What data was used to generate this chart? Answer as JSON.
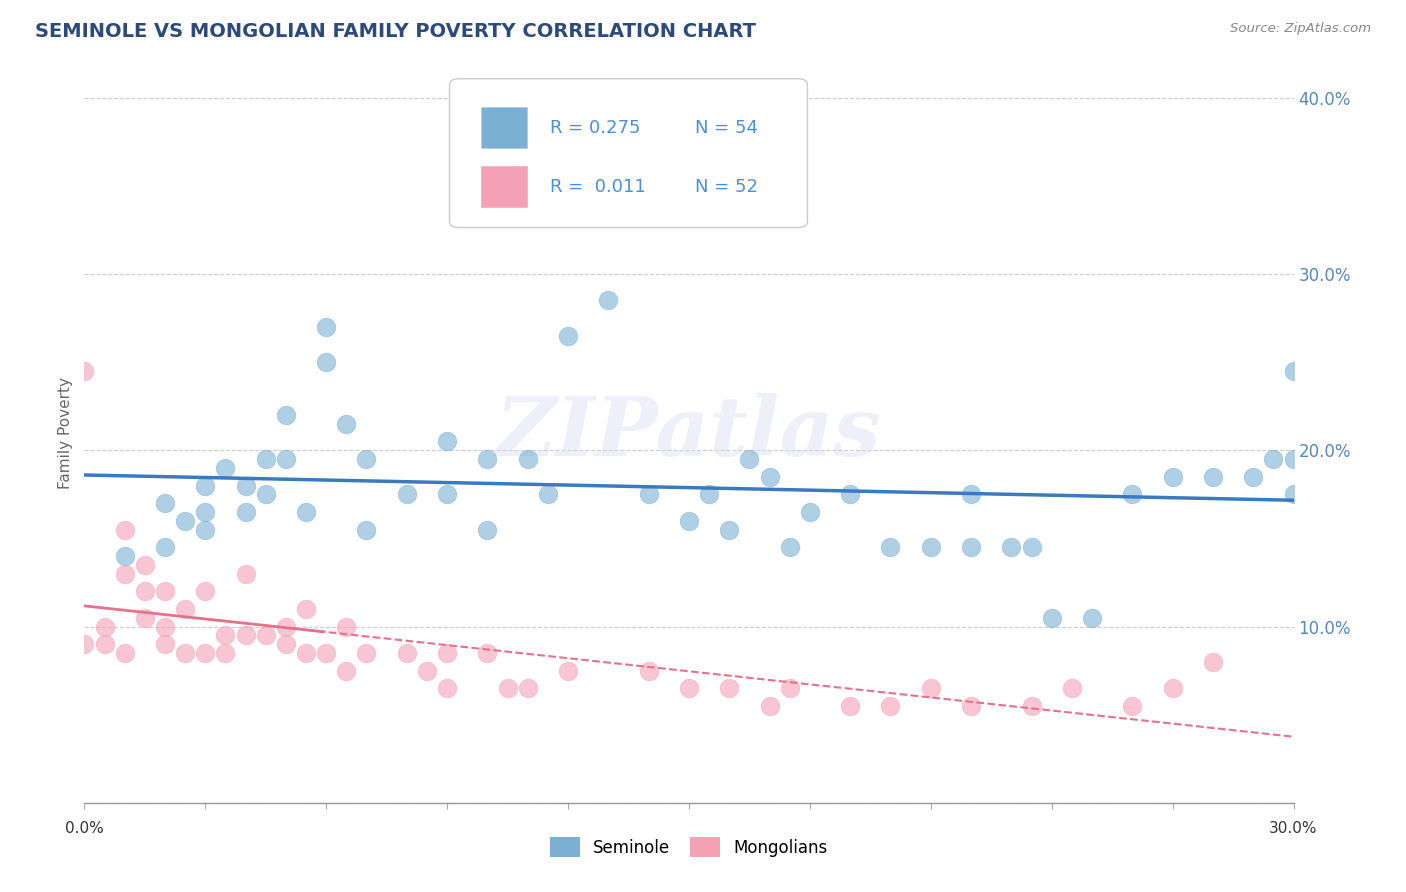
{
  "title": "SEMINOLE VS MONGOLIAN FAMILY POVERTY CORRELATION CHART",
  "source_text": "Source: ZipAtlas.com",
  "ylabel": "Family Poverty",
  "xlim": [
    0.0,
    0.3
  ],
  "ylim": [
    0.0,
    0.42
  ],
  "yticks": [
    0.0,
    0.1,
    0.2,
    0.3,
    0.4
  ],
  "ytick_labels": [
    "",
    "10.0%",
    "20.0%",
    "30.0%",
    "40.0%"
  ],
  "grid_color": "#cccccc",
  "background_color": "#ffffff",
  "seminole_color": "#7bafd4",
  "mongolian_color": "#f4a0b5",
  "seminole_line_color": "#3a7abf",
  "mongolian_line_color": "#e8708a",
  "legend_R1": "R = 0.275",
  "legend_N1": "N = 54",
  "legend_R2": "R =  0.011",
  "legend_N2": "N = 52",
  "watermark": "ZIPatlas",
  "seminole_x": [
    0.01,
    0.02,
    0.02,
    0.025,
    0.03,
    0.03,
    0.03,
    0.035,
    0.04,
    0.04,
    0.045,
    0.045,
    0.05,
    0.05,
    0.055,
    0.06,
    0.06,
    0.065,
    0.07,
    0.07,
    0.08,
    0.09,
    0.09,
    0.1,
    0.1,
    0.11,
    0.115,
    0.12,
    0.13,
    0.14,
    0.15,
    0.155,
    0.16,
    0.165,
    0.17,
    0.175,
    0.18,
    0.19,
    0.2,
    0.21,
    0.22,
    0.22,
    0.23,
    0.235,
    0.24,
    0.25,
    0.26,
    0.27,
    0.28,
    0.29,
    0.295,
    0.3,
    0.3,
    0.3
  ],
  "seminole_y": [
    0.14,
    0.145,
    0.17,
    0.16,
    0.155,
    0.165,
    0.18,
    0.19,
    0.165,
    0.18,
    0.195,
    0.175,
    0.195,
    0.22,
    0.165,
    0.25,
    0.27,
    0.215,
    0.155,
    0.195,
    0.175,
    0.205,
    0.175,
    0.195,
    0.155,
    0.195,
    0.175,
    0.265,
    0.285,
    0.175,
    0.16,
    0.175,
    0.155,
    0.195,
    0.185,
    0.145,
    0.165,
    0.175,
    0.145,
    0.145,
    0.175,
    0.145,
    0.145,
    0.145,
    0.105,
    0.105,
    0.175,
    0.185,
    0.185,
    0.185,
    0.195,
    0.175,
    0.195,
    0.245
  ],
  "mongolian_x": [
    0.0,
    0.0,
    0.005,
    0.005,
    0.01,
    0.01,
    0.01,
    0.015,
    0.015,
    0.015,
    0.02,
    0.02,
    0.02,
    0.025,
    0.025,
    0.03,
    0.03,
    0.035,
    0.035,
    0.04,
    0.04,
    0.045,
    0.05,
    0.05,
    0.055,
    0.055,
    0.06,
    0.065,
    0.065,
    0.07,
    0.08,
    0.085,
    0.09,
    0.09,
    0.1,
    0.105,
    0.11,
    0.12,
    0.14,
    0.15,
    0.16,
    0.17,
    0.175,
    0.19,
    0.2,
    0.21,
    0.22,
    0.235,
    0.245,
    0.26,
    0.27,
    0.28
  ],
  "mongolian_y": [
    0.245,
    0.09,
    0.1,
    0.09,
    0.155,
    0.13,
    0.085,
    0.12,
    0.105,
    0.135,
    0.1,
    0.12,
    0.09,
    0.085,
    0.11,
    0.085,
    0.12,
    0.095,
    0.085,
    0.13,
    0.095,
    0.095,
    0.1,
    0.09,
    0.085,
    0.11,
    0.085,
    0.075,
    0.1,
    0.085,
    0.085,
    0.075,
    0.065,
    0.085,
    0.085,
    0.065,
    0.065,
    0.075,
    0.075,
    0.065,
    0.065,
    0.055,
    0.065,
    0.055,
    0.055,
    0.065,
    0.055,
    0.055,
    0.065,
    0.055,
    0.065,
    0.08
  ]
}
